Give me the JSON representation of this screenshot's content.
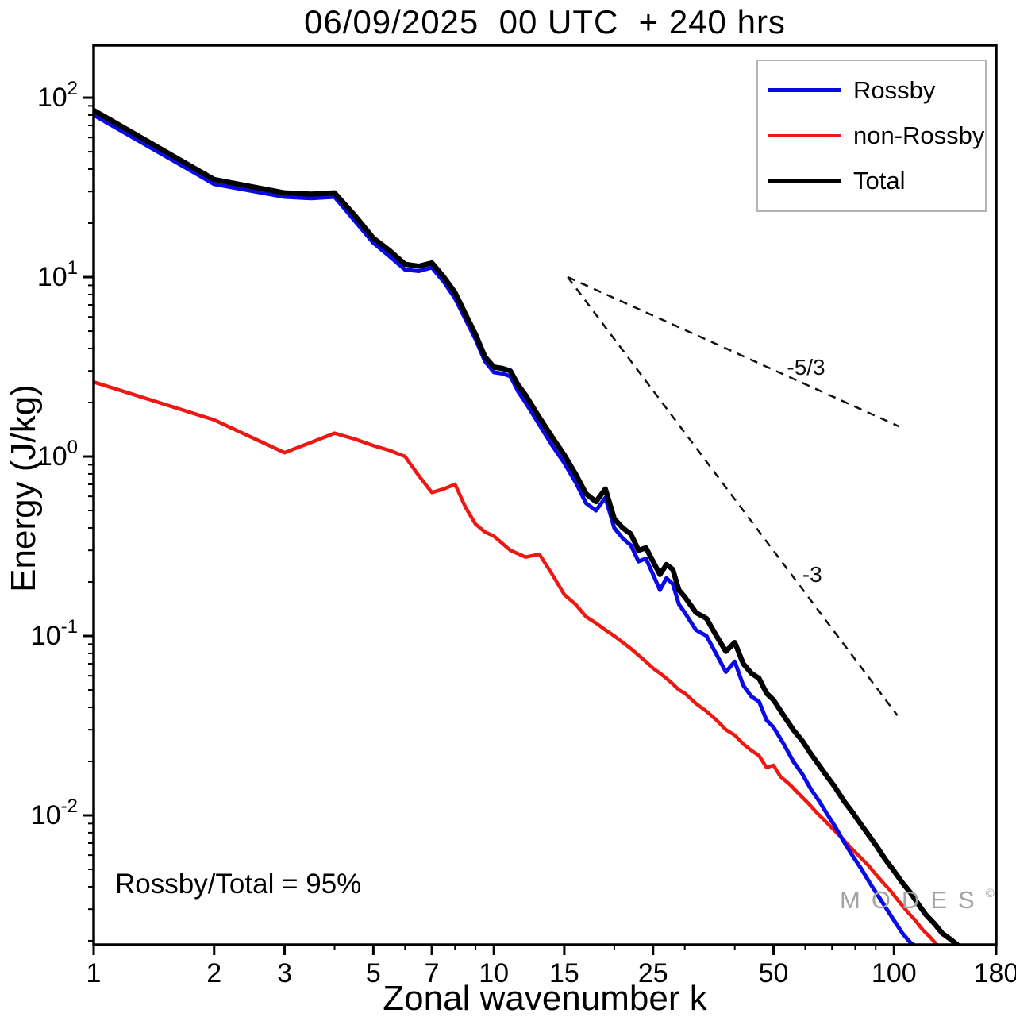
{
  "title": "06/09/2025  00 UTC  + 240 hrs",
  "axes": {
    "xlabel": "Zonal wavenumber k",
    "ylabel": "Energy (J/kg)"
  },
  "legend": [
    {
      "label": "Rossby",
      "color": "#0a0ae6"
    },
    {
      "label": "non-Rossby",
      "color": "#ee1711"
    },
    {
      "label": "Total",
      "color": "#000000"
    }
  ],
  "annotation": "Rossby/Total = 95%",
  "watermark": {
    "text": "MODES",
    "mark": "©"
  },
  "chart_data": {
    "type": "line",
    "title": "06/09/2025  00 UTC  + 240 hrs",
    "xlabel": "Zonal wavenumber k",
    "ylabel": "Energy (J/kg)",
    "x_scale": "log",
    "y_scale": "log",
    "xlim": [
      1,
      180
    ],
    "ylim": [
      0.0019,
      196
    ],
    "grid": false,
    "legend_position": "top-right",
    "x_ticks": [
      1,
      2,
      3,
      5,
      7,
      10,
      15,
      25,
      50,
      100,
      180
    ],
    "x_minor_ticks": [
      4,
      6,
      8,
      9,
      20,
      30,
      40,
      60,
      70,
      80,
      90
    ],
    "y_tick_exponents": [
      -2,
      -1,
      0,
      1,
      2
    ],
    "y_minor_ticks": [
      0.002,
      0.003,
      0.004,
      0.005,
      0.006,
      0.007,
      0.008,
      0.009,
      0.02,
      0.03,
      0.04,
      0.05,
      0.06,
      0.07,
      0.08,
      0.09,
      0.2,
      0.3,
      0.4,
      0.5,
      0.6,
      0.7,
      0.8,
      0.9,
      2,
      3,
      4,
      5,
      6,
      7,
      8,
      9,
      20,
      30,
      40,
      50,
      60,
      70,
      80,
      90
    ],
    "series": [
      {
        "name": "non-Rossby",
        "color": "#ee1711",
        "width": 4.5,
        "points": [
          [
            1,
            2.6
          ],
          [
            2,
            1.6
          ],
          [
            3,
            1.05
          ],
          [
            3.5,
            1.2
          ],
          [
            4,
            1.35
          ],
          [
            4.5,
            1.25
          ],
          [
            5,
            1.15
          ],
          [
            5.5,
            1.08
          ],
          [
            6,
            1.0
          ],
          [
            6.5,
            0.78
          ],
          [
            7,
            0.63
          ],
          [
            7.5,
            0.66
          ],
          [
            8,
            0.7
          ],
          [
            8.5,
            0.52
          ],
          [
            9,
            0.42
          ],
          [
            9.5,
            0.38
          ],
          [
            10,
            0.36
          ],
          [
            11,
            0.3
          ],
          [
            12,
            0.275
          ],
          [
            13,
            0.285
          ],
          [
            14,
            0.22
          ],
          [
            15,
            0.17
          ],
          [
            16,
            0.15
          ],
          [
            17,
            0.128
          ],
          [
            18,
            0.118
          ],
          [
            19,
            0.108
          ],
          [
            20,
            0.1
          ],
          [
            21,
            0.092
          ],
          [
            22,
            0.085
          ],
          [
            23,
            0.078
          ],
          [
            24,
            0.072
          ],
          [
            25,
            0.066
          ],
          [
            26,
            0.062
          ],
          [
            27,
            0.058
          ],
          [
            28,
            0.054
          ],
          [
            29,
            0.05
          ],
          [
            30,
            0.048
          ],
          [
            32,
            0.042
          ],
          [
            34,
            0.038
          ],
          [
            36,
            0.034
          ],
          [
            38,
            0.03
          ],
          [
            40,
            0.028
          ],
          [
            42,
            0.025
          ],
          [
            44,
            0.023
          ],
          [
            46,
            0.0215
          ],
          [
            48,
            0.0185
          ],
          [
            50,
            0.019
          ],
          [
            52,
            0.0165
          ],
          [
            55,
            0.0148
          ],
          [
            58,
            0.0131
          ],
          [
            61,
            0.0117
          ],
          [
            64,
            0.0104
          ],
          [
            67,
            0.0094
          ],
          [
            70,
            0.0085
          ],
          [
            74,
            0.0075
          ],
          [
            78,
            0.0066
          ],
          [
            82,
            0.0059
          ],
          [
            86,
            0.0053
          ],
          [
            90,
            0.0047
          ],
          [
            94,
            0.0042
          ],
          [
            98,
            0.0038
          ],
          [
            103,
            0.0033
          ],
          [
            108,
            0.0029
          ],
          [
            113,
            0.0026
          ],
          [
            118,
            0.0023
          ],
          [
            123,
            0.0021
          ],
          [
            128,
            0.0019
          ]
        ]
      },
      {
        "name": "Rossby",
        "color": "#0a0ae6",
        "width": 5,
        "points": [
          [
            1,
            80
          ],
          [
            2,
            33
          ],
          [
            3,
            28
          ],
          [
            3.5,
            27.5
          ],
          [
            4,
            28
          ],
          [
            4.5,
            20.5
          ],
          [
            5,
            15.5
          ],
          [
            5.5,
            13
          ],
          [
            6,
            11
          ],
          [
            6.5,
            10.8
          ],
          [
            7,
            11.3
          ],
          [
            7.5,
            9.4
          ],
          [
            8,
            7.6
          ],
          [
            8.5,
            5.8
          ],
          [
            9,
            4.5
          ],
          [
            9.5,
            3.4
          ],
          [
            10,
            2.95
          ],
          [
            10.5,
            2.9
          ],
          [
            11,
            2.8
          ],
          [
            11.5,
            2.3
          ],
          [
            12,
            2.0
          ],
          [
            13,
            1.5
          ],
          [
            14,
            1.15
          ],
          [
            15,
            0.92
          ],
          [
            16,
            0.72
          ],
          [
            17,
            0.55
          ],
          [
            18,
            0.5
          ],
          [
            19,
            0.59
          ],
          [
            20,
            0.4
          ],
          [
            21,
            0.35
          ],
          [
            22,
            0.32
          ],
          [
            23,
            0.26
          ],
          [
            24,
            0.27
          ],
          [
            25,
            0.22
          ],
          [
            26,
            0.18
          ],
          [
            27,
            0.21
          ],
          [
            28,
            0.195
          ],
          [
            29,
            0.15
          ],
          [
            30,
            0.135
          ],
          [
            32,
            0.108
          ],
          [
            34,
            0.1
          ],
          [
            36,
            0.079
          ],
          [
            38,
            0.063
          ],
          [
            40,
            0.072
          ],
          [
            42,
            0.053
          ],
          [
            44,
            0.046
          ],
          [
            46,
            0.043
          ],
          [
            48,
            0.034
          ],
          [
            50,
            0.031
          ],
          [
            53,
            0.025
          ],
          [
            56,
            0.02
          ],
          [
            59,
            0.017
          ],
          [
            62,
            0.014
          ],
          [
            65,
            0.012
          ],
          [
            68,
            0.0102
          ],
          [
            71,
            0.0088
          ],
          [
            75,
            0.0071
          ],
          [
            79,
            0.0059
          ],
          [
            83,
            0.005
          ],
          [
            87,
            0.0042
          ],
          [
            91,
            0.0036
          ],
          [
            95,
            0.0031
          ],
          [
            100,
            0.0026
          ],
          [
            105,
            0.0022
          ],
          [
            110,
            0.00195
          ],
          [
            112,
            0.0019
          ]
        ]
      },
      {
        "name": "Total",
        "color": "#000000",
        "width": 6.5,
        "points": [
          [
            1,
            85
          ],
          [
            2,
            35
          ],
          [
            3,
            29.5
          ],
          [
            3.5,
            29
          ],
          [
            4,
            29.5
          ],
          [
            4.5,
            22
          ],
          [
            5,
            16.5
          ],
          [
            5.5,
            14
          ],
          [
            6,
            11.8
          ],
          [
            6.5,
            11.5
          ],
          [
            7,
            12
          ],
          [
            7.5,
            10
          ],
          [
            8,
            8.2
          ],
          [
            8.5,
            6.2
          ],
          [
            9,
            4.8
          ],
          [
            9.5,
            3.6
          ],
          [
            10,
            3.15
          ],
          [
            10.5,
            3.1
          ],
          [
            11,
            3.0
          ],
          [
            11.5,
            2.5
          ],
          [
            12,
            2.2
          ],
          [
            13,
            1.65
          ],
          [
            14,
            1.28
          ],
          [
            15,
            1.02
          ],
          [
            16,
            0.8
          ],
          [
            17,
            0.62
          ],
          [
            18,
            0.56
          ],
          [
            19,
            0.66
          ],
          [
            20,
            0.45
          ],
          [
            21,
            0.4
          ],
          [
            22,
            0.37
          ],
          [
            23,
            0.3
          ],
          [
            24,
            0.31
          ],
          [
            25,
            0.26
          ],
          [
            26,
            0.22
          ],
          [
            27,
            0.25
          ],
          [
            28,
            0.235
          ],
          [
            29,
            0.18
          ],
          [
            30,
            0.165
          ],
          [
            32,
            0.135
          ],
          [
            34,
            0.125
          ],
          [
            36,
            0.1
          ],
          [
            38,
            0.082
          ],
          [
            40,
            0.092
          ],
          [
            42,
            0.07
          ],
          [
            44,
            0.062
          ],
          [
            46,
            0.058
          ],
          [
            48,
            0.048
          ],
          [
            50,
            0.044
          ],
          [
            53,
            0.036
          ],
          [
            56,
            0.03
          ],
          [
            59,
            0.026
          ],
          [
            62,
            0.022
          ],
          [
            65,
            0.019
          ],
          [
            68,
            0.0165
          ],
          [
            71,
            0.0145
          ],
          [
            75,
            0.012
          ],
          [
            79,
            0.0103
          ],
          [
            83,
            0.0088
          ],
          [
            87,
            0.0076
          ],
          [
            91,
            0.0066
          ],
          [
            95,
            0.0057
          ],
          [
            100,
            0.0049
          ],
          [
            105,
            0.0042
          ],
          [
            110,
            0.0037
          ],
          [
            115,
            0.0032
          ],
          [
            120,
            0.0028
          ],
          [
            126,
            0.0025
          ],
          [
            132,
            0.0022
          ],
          [
            138,
            0.00205
          ],
          [
            144,
            0.0019
          ]
        ]
      }
    ],
    "reference_lines": [
      {
        "label": "-5/3",
        "from": [
          15.3,
          10
        ],
        "to": [
          103,
          1.47
        ],
        "label_at": [
          54,
          2.86
        ]
      },
      {
        "label": "-3",
        "from": [
          15.3,
          10
        ],
        "to": [
          102,
          0.036
        ],
        "label_at": [
          59,
          0.2
        ]
      }
    ]
  }
}
